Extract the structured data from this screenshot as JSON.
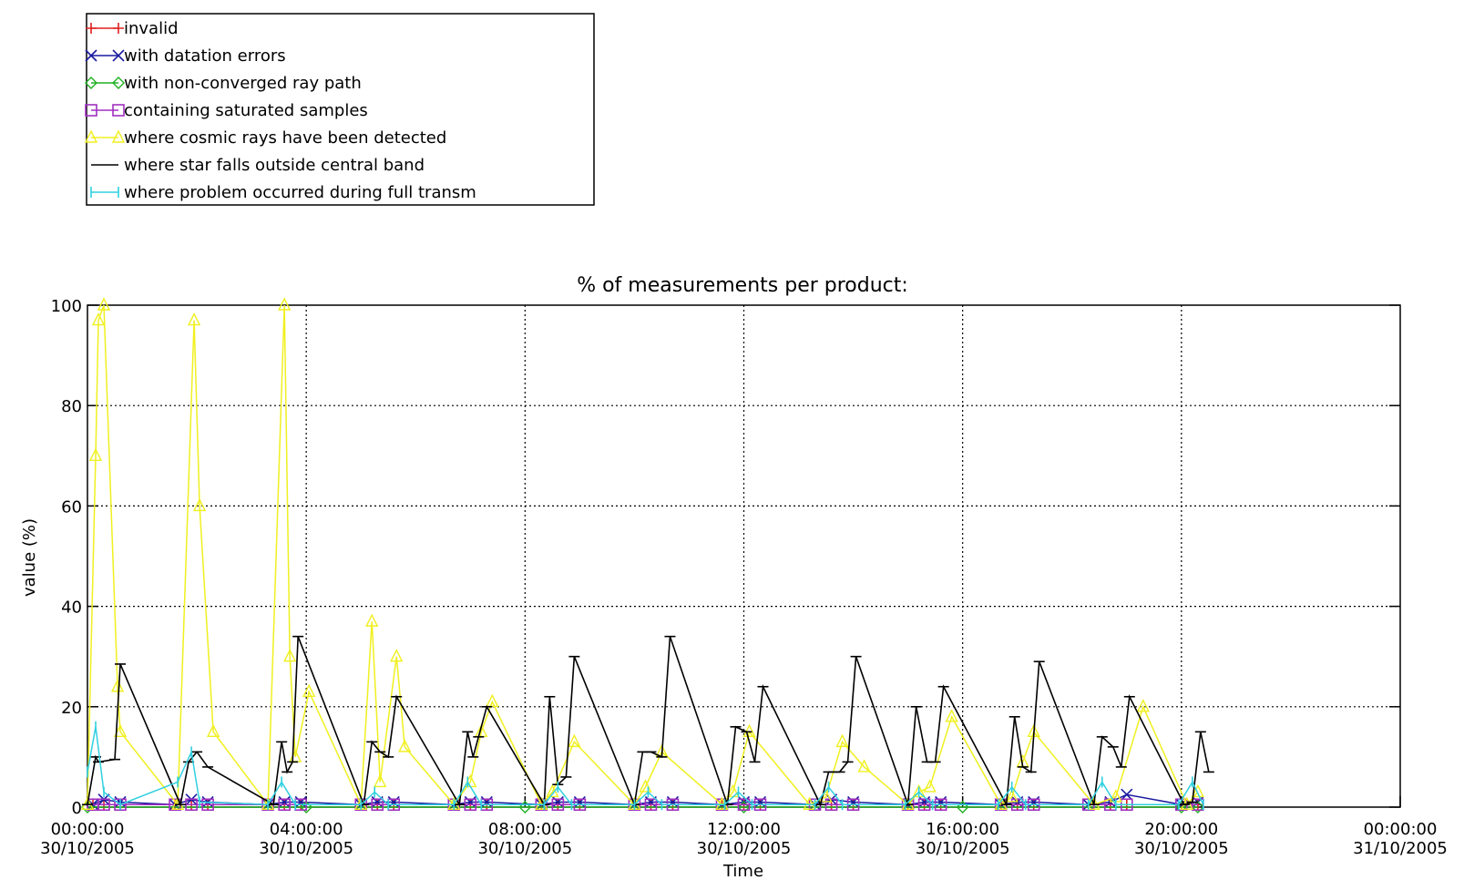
{
  "chart_data": {
    "type": "line",
    "title": "% of measurements per product:",
    "xlabel": "Time",
    "ylabel": "value (%)",
    "xlim": [
      "30/10/2005 00:00:00",
      "31/10/2005 00:00:00"
    ],
    "ylim": [
      0,
      100
    ],
    "grid": true,
    "legend_position": "top-left, outside plot",
    "x_ticks": [
      {
        "time": "00:00:00",
        "date": "30/10/2005",
        "hour": 0
      },
      {
        "time": "04:00:00",
        "date": "30/10/2005",
        "hour": 4
      },
      {
        "time": "08:00:00",
        "date": "30/10/2005",
        "hour": 8
      },
      {
        "time": "12:00:00",
        "date": "30/10/2005",
        "hour": 12
      },
      {
        "time": "16:00:00",
        "date": "30/10/2005",
        "hour": 16
      },
      {
        "time": "20:00:00",
        "date": "30/10/2005",
        "hour": 20
      },
      {
        "time": "00:00:00",
        "date": "31/10/2005",
        "hour": 24
      }
    ],
    "y_ticks": [
      0,
      20,
      40,
      60,
      80,
      100
    ],
    "series": [
      {
        "name": "invalid",
        "color": "#e02020",
        "marker": "plus",
        "x": [
          0.1,
          0.3,
          0.6,
          1.6,
          1.9,
          2.2,
          3.3,
          3.6,
          3.9,
          5.0,
          5.3,
          5.6,
          6.7,
          7.0,
          7.3,
          8.3,
          8.6,
          9.0,
          10.0,
          10.3,
          10.7,
          11.6,
          12.0,
          12.3,
          13.3,
          13.6,
          14.0,
          15.0,
          15.3,
          15.6,
          16.7,
          17.0,
          17.3,
          18.3,
          18.7,
          19.0,
          20.0,
          20.3
        ],
        "y": [
          0.5,
          0.5,
          0.5,
          0.5,
          0.5,
          0.5,
          0.5,
          0.5,
          0.5,
          0.5,
          0.5,
          0.5,
          0.5,
          0.5,
          0.5,
          0.5,
          0.5,
          0.5,
          0.5,
          0.5,
          0.5,
          0.5,
          0.5,
          0.5,
          0.5,
          0.5,
          0.5,
          0.5,
          0.5,
          0.5,
          0.5,
          0.5,
          0.5,
          0.5,
          0.5,
          0.5,
          0.5,
          0.5
        ]
      },
      {
        "name": "with datation errors",
        "color": "#1a1aa0",
        "marker": "x",
        "x": [
          0.1,
          0.3,
          0.6,
          1.6,
          1.9,
          2.2,
          3.3,
          3.6,
          3.9,
          5.0,
          5.3,
          5.6,
          6.7,
          7.0,
          7.3,
          8.3,
          8.6,
          9.0,
          10.0,
          10.3,
          10.7,
          11.6,
          12.0,
          12.3,
          13.3,
          13.6,
          14.0,
          15.0,
          15.3,
          15.6,
          16.7,
          17.0,
          17.3,
          18.3,
          18.7,
          19.0,
          20.0,
          20.3
        ],
        "y": [
          0.5,
          1.5,
          1,
          0.5,
          1.5,
          1,
          0.5,
          1,
          1,
          0.5,
          1,
          1,
          0.5,
          1,
          1,
          0.5,
          1,
          1,
          0.5,
          1,
          1,
          0.5,
          1,
          1,
          0.5,
          1.5,
          1,
          0.5,
          1,
          1,
          0.5,
          1,
          1,
          0.5,
          1,
          2.5,
          0.5,
          1
        ]
      },
      {
        "name": "with non-converged ray path",
        "color": "#20b020",
        "marker": "diamond",
        "x": [
          0,
          4,
          8,
          12,
          16,
          20,
          20.3
        ],
        "y": [
          0,
          0,
          0,
          0,
          0,
          0,
          0
        ]
      },
      {
        "name": "containing saturated samples",
        "color": "#a030c0",
        "marker": "square",
        "x": [
          0.1,
          0.3,
          0.6,
          1.6,
          1.9,
          2.2,
          3.3,
          3.6,
          3.9,
          5.0,
          5.3,
          5.6,
          6.7,
          7.0,
          7.3,
          8.3,
          8.6,
          9.0,
          10.0,
          10.3,
          10.7,
          11.6,
          12.0,
          12.3,
          13.3,
          13.6,
          14.0,
          15.0,
          15.3,
          15.6,
          16.7,
          17.0,
          17.3,
          18.3,
          18.7,
          19.0,
          20.0,
          20.3
        ],
        "y": [
          0.5,
          0.5,
          0.5,
          0.5,
          0.5,
          0.5,
          0.5,
          0.5,
          0.5,
          0.5,
          0.5,
          0.5,
          0.5,
          0.5,
          0.5,
          0.5,
          0.5,
          0.5,
          0.5,
          0.5,
          0.5,
          0.5,
          0.5,
          0.5,
          0.5,
          0.5,
          0.5,
          0.5,
          0.5,
          0.5,
          0.5,
          0.5,
          0.5,
          0.5,
          0.5,
          0.5,
          0.5,
          0.5
        ]
      },
      {
        "name": "where cosmic rays have been detected",
        "color": "#f0f020",
        "marker": "triangle",
        "x": [
          0.0,
          0.15,
          0.2,
          0.3,
          0.55,
          0.6,
          1.65,
          1.95,
          2.05,
          2.3,
          3.3,
          3.6,
          3.7,
          3.8,
          4.05,
          5.0,
          5.2,
          5.35,
          5.65,
          5.8,
          6.7,
          7.0,
          7.2,
          7.4,
          8.3,
          8.5,
          8.9,
          10.0,
          10.2,
          10.5,
          11.6,
          11.8,
          12.1,
          13.2,
          13.5,
          13.8,
          14.2,
          15.0,
          15.2,
          15.4,
          15.8,
          16.7,
          16.9,
          17.1,
          17.3,
          18.4,
          18.8,
          19.3,
          20.1,
          20.3
        ],
        "y": [
          0.5,
          70,
          97,
          100,
          24,
          15,
          0.5,
          97,
          60,
          15,
          0.5,
          100,
          30,
          10,
          23,
          0.5,
          37,
          5,
          30,
          12,
          0.5,
          5,
          15,
          21,
          0.5,
          3,
          13,
          0.5,
          4,
          11,
          0.5,
          3,
          15,
          0.5,
          2,
          13,
          8,
          0.5,
          3,
          4,
          18,
          0.5,
          2,
          9,
          15,
          0.5,
          2,
          20,
          0.5,
          3
        ]
      },
      {
        "name": "where star falls outside central band",
        "color": "#000000",
        "marker": "tee",
        "x": [
          0.0,
          0.15,
          0.2,
          0.5,
          0.6,
          1.7,
          1.85,
          2.0,
          2.2,
          3.4,
          3.55,
          3.65,
          3.75,
          3.85,
          5.05,
          5.2,
          5.35,
          5.5,
          5.65,
          6.8,
          6.95,
          7.05,
          7.15,
          7.3,
          8.35,
          8.45,
          8.6,
          8.75,
          8.9,
          10.0,
          10.15,
          10.3,
          10.5,
          10.65,
          11.7,
          11.85,
          12.05,
          12.2,
          12.35,
          13.4,
          13.55,
          13.75,
          13.9,
          14.05,
          15.0,
          15.15,
          15.35,
          15.5,
          15.65,
          16.8,
          16.95,
          17.1,
          17.25,
          17.4,
          18.4,
          18.55,
          18.75,
          18.9,
          19.05,
          20.05,
          20.2,
          20.35,
          20.5
        ],
        "y": [
          0.5,
          10,
          9,
          9.5,
          28.5,
          0.5,
          9,
          11,
          8,
          0.5,
          13,
          7,
          9,
          34,
          0.5,
          13,
          11,
          10,
          22,
          0.5,
          15,
          10,
          14,
          20,
          0.5,
          22,
          4.5,
          6,
          30,
          0.5,
          11,
          11,
          10,
          34,
          0.5,
          16,
          15,
          9,
          24,
          0.5,
          7,
          7,
          9,
          30,
          0.5,
          20,
          9,
          9,
          24,
          0.5,
          18,
          8,
          7,
          29,
          0.5,
          14,
          12,
          8,
          22,
          0.5,
          1,
          15,
          7
        ]
      },
      {
        "name": "where problem occurred during full transm",
        "color": "#30d0e0",
        "marker": "vtick",
        "x": [
          0.0,
          0.15,
          0.3,
          0.6,
          1.65,
          1.9,
          2.05,
          3.3,
          3.55,
          3.8,
          5.0,
          5.25,
          5.5,
          6.7,
          6.95,
          7.2,
          8.35,
          8.6,
          8.85,
          10.0,
          10.25,
          10.5,
          11.65,
          11.9,
          12.15,
          13.3,
          13.55,
          13.8,
          14.95,
          15.2,
          15.45,
          16.65,
          16.9,
          17.15,
          18.3,
          18.55,
          18.8,
          19.95,
          20.2,
          20.4
        ],
        "y": [
          7,
          16,
          3,
          0.5,
          5,
          11,
          1,
          0.5,
          5,
          0.5,
          0.5,
          3,
          0.5,
          0.5,
          5,
          0.5,
          0.5,
          4,
          0.5,
          0.5,
          3,
          0.5,
          0.5,
          3,
          0.5,
          0.5,
          4,
          0.5,
          0.5,
          3,
          0.5,
          0.5,
          4,
          0.5,
          0.5,
          5,
          0.5,
          0.5,
          5,
          0.5
        ]
      }
    ]
  }
}
